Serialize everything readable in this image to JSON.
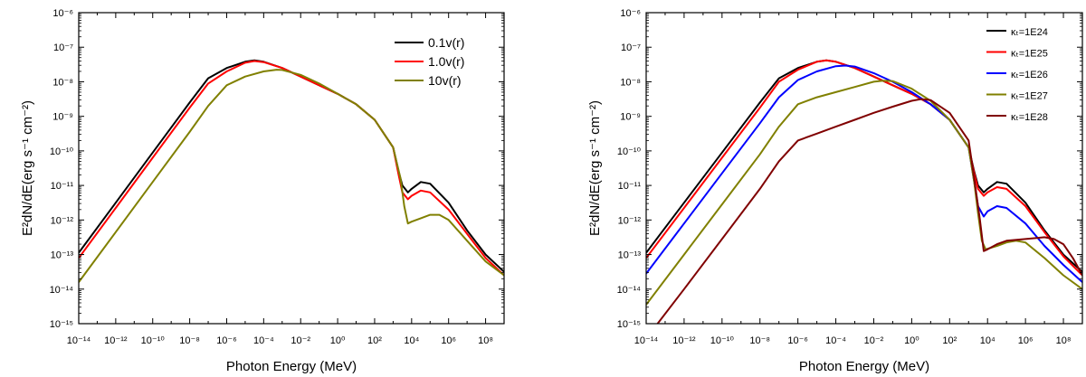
{
  "chart_data": [
    {
      "type": "line",
      "x_scale": "log",
      "y_scale": "log",
      "xlabel": "Photon Energy (MeV)",
      "ylabel": "E²dN/dE(erg s⁻¹ cm⁻²)",
      "xlim": [
        1e-14,
        1000000000.0
      ],
      "ylim": [
        1e-15,
        1e-06
      ],
      "x_ticks": [
        -14,
        -12,
        -10,
        -8,
        -6,
        -4,
        -2,
        0,
        2,
        4,
        6,
        8
      ],
      "y_ticks": [
        -15,
        -14,
        -13,
        -12,
        -11,
        -10,
        -9,
        -8,
        -7,
        -6
      ],
      "legend_position": "top-right",
      "series": [
        {
          "name": "0.1v(r)",
          "color": "#000000",
          "x": [
            -14,
            -12,
            -10,
            -8,
            -7,
            -6,
            -5,
            -4.5,
            -4,
            -3,
            -2,
            -1,
            0,
            1,
            2,
            3,
            3.3,
            3.5,
            3.8,
            4,
            4.5,
            5,
            6,
            7,
            8,
            9
          ],
          "y": [
            -12.95,
            -11.5,
            -10.05,
            -8.6,
            -7.9,
            -7.6,
            -7.42,
            -7.38,
            -7.42,
            -7.6,
            -7.85,
            -8.1,
            -8.35,
            -8.65,
            -9.1,
            -9.9,
            -10.6,
            -11.0,
            -11.2,
            -11.1,
            -10.9,
            -10.95,
            -11.5,
            -12.3,
            -13.0,
            -13.5
          ]
        },
        {
          "name": "1.0v(r)",
          "color": "#ff0000",
          "x": [
            -14,
            -12,
            -10,
            -8,
            -7,
            -6,
            -5,
            -4.5,
            -4,
            -3,
            -2,
            -1,
            0,
            1,
            2,
            3,
            3.3,
            3.5,
            3.8,
            4,
            4.5,
            5,
            6,
            7,
            8,
            9
          ],
          "y": [
            -13.1,
            -11.65,
            -10.2,
            -8.75,
            -8.05,
            -7.7,
            -7.45,
            -7.4,
            -7.43,
            -7.6,
            -7.85,
            -8.1,
            -8.35,
            -8.65,
            -9.1,
            -9.9,
            -10.7,
            -11.2,
            -11.4,
            -11.3,
            -11.15,
            -11.2,
            -11.7,
            -12.4,
            -13.1,
            -13.6
          ]
        },
        {
          "name": "10v(r)",
          "color": "#808000",
          "x": [
            -14,
            -12,
            -10,
            -8,
            -7,
            -6,
            -5,
            -4,
            -3.3,
            -3,
            -2,
            -1,
            0,
            1,
            2,
            3,
            3.4,
            3.6,
            3.8,
            4,
            4.5,
            5,
            5.5,
            6,
            7,
            8,
            9
          ],
          "y": [
            -13.8,
            -12.35,
            -10.9,
            -9.45,
            -8.7,
            -8.1,
            -7.85,
            -7.7,
            -7.65,
            -7.66,
            -7.8,
            -8.05,
            -8.35,
            -8.65,
            -9.1,
            -9.9,
            -10.8,
            -11.6,
            -12.1,
            -12.05,
            -11.95,
            -11.85,
            -11.85,
            -12.0,
            -12.6,
            -13.2,
            -13.6
          ]
        }
      ]
    },
    {
      "type": "line",
      "x_scale": "log",
      "y_scale": "log",
      "xlabel": "Photon Energy (MeV)",
      "ylabel": "E²dN/dE(erg s⁻¹ cm⁻²)",
      "xlim": [
        1e-14,
        1000000000.0
      ],
      "ylim": [
        1e-15,
        1e-06
      ],
      "x_ticks": [
        -14,
        -12,
        -10,
        -8,
        -6,
        -4,
        -2,
        0,
        2,
        4,
        6,
        8
      ],
      "y_ticks": [
        -15,
        -14,
        -13,
        -12,
        -11,
        -10,
        -9,
        -8,
        -7,
        -6
      ],
      "legend_position": "top-right",
      "series": [
        {
          "name": "κₜ=1E24",
          "color": "#000000",
          "x": [
            -14,
            -12,
            -10,
            -8,
            -7,
            -6,
            -5,
            -4.5,
            -4,
            -3,
            -2,
            -1,
            0,
            1,
            2,
            3,
            3.3,
            3.5,
            3.8,
            4,
            4.5,
            5,
            6,
            7,
            8,
            9
          ],
          "y": [
            -12.95,
            -11.5,
            -10.05,
            -8.6,
            -7.9,
            -7.6,
            -7.42,
            -7.38,
            -7.42,
            -7.6,
            -7.85,
            -8.1,
            -8.35,
            -8.65,
            -9.1,
            -9.9,
            -10.6,
            -11.0,
            -11.2,
            -11.1,
            -10.9,
            -10.95,
            -11.5,
            -12.3,
            -13.0,
            -13.5
          ]
        },
        {
          "name": "κₜ=1E25",
          "color": "#ff0000",
          "x": [
            -14,
            -12,
            -10,
            -8,
            -7,
            -6,
            -5,
            -4.5,
            -4,
            -3,
            -2,
            -1,
            0,
            1,
            2,
            3,
            3.3,
            3.5,
            3.8,
            4,
            4.5,
            5,
            6,
            7,
            8,
            9
          ],
          "y": [
            -13.1,
            -11.65,
            -10.2,
            -8.75,
            -8.0,
            -7.65,
            -7.42,
            -7.38,
            -7.42,
            -7.6,
            -7.85,
            -8.1,
            -8.35,
            -8.65,
            -9.1,
            -9.9,
            -10.65,
            -11.1,
            -11.3,
            -11.2,
            -11.05,
            -11.1,
            -11.6,
            -12.35,
            -13.05,
            -13.6
          ]
        },
        {
          "name": "κₜ=1E26",
          "color": "#0000ff",
          "x": [
            -14,
            -12,
            -10,
            -8,
            -7,
            -6,
            -5,
            -4,
            -3.5,
            -3,
            -2,
            -1,
            0,
            1,
            2,
            3,
            3.3,
            3.5,
            3.8,
            4,
            4.5,
            5,
            6,
            7,
            8,
            9
          ],
          "y": [
            -13.55,
            -12.1,
            -10.65,
            -9.2,
            -8.45,
            -7.95,
            -7.7,
            -7.55,
            -7.53,
            -7.56,
            -7.75,
            -8.0,
            -8.3,
            -8.65,
            -9.1,
            -9.9,
            -10.9,
            -11.6,
            -11.9,
            -11.75,
            -11.6,
            -11.65,
            -12.1,
            -12.75,
            -13.3,
            -13.8
          ]
        },
        {
          "name": "κₜ=1E27",
          "color": "#808000",
          "x": [
            -14,
            -12,
            -10,
            -8,
            -7,
            -6,
            -5,
            -4,
            -3,
            -2,
            -1.5,
            -1,
            0,
            1,
            2,
            3,
            3.3,
            3.5,
            3.7,
            3.9,
            4.5,
            5,
            5.5,
            6,
            7,
            8,
            9
          ],
          "y": [
            -14.45,
            -13.0,
            -11.55,
            -10.1,
            -9.3,
            -8.65,
            -8.45,
            -8.3,
            -8.15,
            -8.0,
            -7.97,
            -7.98,
            -8.2,
            -8.55,
            -9.1,
            -9.9,
            -10.9,
            -11.8,
            -12.6,
            -12.85,
            -12.75,
            -12.65,
            -12.6,
            -12.65,
            -13.1,
            -13.6,
            -14.0
          ]
        },
        {
          "name": "κₜ=1E28",
          "color": "#800000",
          "x": [
            -13.4,
            -12,
            -10,
            -8,
            -7,
            -6,
            -5,
            -4,
            -3,
            -2,
            -1,
            0,
            0.5,
            1,
            2,
            3,
            3.3,
            3.6,
            3.8,
            4,
            4.5,
            5,
            6,
            7,
            7.5,
            8,
            8.5,
            9
          ],
          "y": [
            -15.0,
            -14.0,
            -12.55,
            -11.1,
            -10.3,
            -9.7,
            -9.5,
            -9.3,
            -9.1,
            -8.9,
            -8.72,
            -8.55,
            -8.5,
            -8.53,
            -8.9,
            -9.7,
            -10.8,
            -12.0,
            -12.9,
            -12.85,
            -12.7,
            -12.6,
            -12.55,
            -12.5,
            -12.55,
            -12.7,
            -13.1,
            -13.6
          ]
        }
      ]
    }
  ]
}
